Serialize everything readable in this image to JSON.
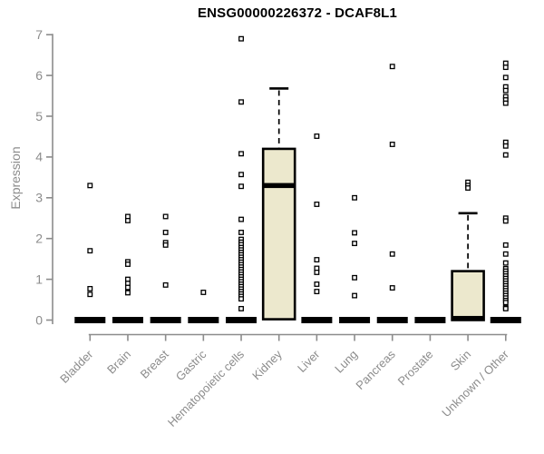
{
  "chart_data": {
    "type": "box",
    "title": "ENSG00000226372 - DCAF8L1",
    "ylabel": "Expression",
    "xlabel": "",
    "ylim": [
      0,
      7
    ],
    "yticks": [
      0,
      1,
      2,
      3,
      4,
      5,
      6,
      7
    ],
    "grid": false,
    "legend": "none",
    "categories": [
      "Bladder",
      "Brain",
      "Breast",
      "Gastric",
      "Hematopoietic cells",
      "Kidney",
      "Liver",
      "Lung",
      "Pancreas",
      "Prostate",
      "Skin",
      "Unknown / Other"
    ],
    "boxes": [
      {
        "category": "Bladder",
        "q1": 0,
        "median": 0,
        "q3": 0,
        "whisker_low": 0,
        "whisker_high": 0,
        "outliers": [
          3.3,
          1.7,
          0.77,
          0.63
        ]
      },
      {
        "category": "Brain",
        "q1": 0,
        "median": 0,
        "q3": 0,
        "whisker_low": 0,
        "whisker_high": 0,
        "outliers": [
          2.54,
          2.44,
          1.43,
          1.37,
          1.0,
          0.9,
          0.8,
          0.67
        ]
      },
      {
        "category": "Breast",
        "q1": 0,
        "median": 0,
        "q3": 0,
        "whisker_low": 0,
        "whisker_high": 0,
        "outliers": [
          2.54,
          2.15,
          1.9,
          1.84,
          0.86
        ]
      },
      {
        "category": "Gastric",
        "q1": 0,
        "median": 0,
        "q3": 0,
        "whisker_low": 0,
        "whisker_high": 0,
        "outliers": [
          0.68
        ]
      },
      {
        "category": "Hematopoietic cells",
        "q1": 0,
        "median": 0,
        "q3": 0,
        "whisker_low": 0,
        "whisker_high": 0,
        "outliers": [
          6.9,
          5.35,
          4.08,
          3.57,
          3.28,
          2.47,
          2.15,
          1.98,
          1.91,
          1.85,
          1.78,
          1.72,
          1.66,
          1.6,
          1.54,
          1.48,
          1.42,
          1.36,
          1.3,
          1.24,
          1.18,
          1.12,
          1.06,
          1.0,
          0.94,
          0.88,
          0.82,
          0.76,
          0.7,
          0.64,
          0.58,
          0.52,
          0.28
        ]
      },
      {
        "category": "Kidney",
        "q1": 0.02,
        "median": 3.3,
        "q3": 4.2,
        "whisker_low": 0,
        "whisker_high": 5.68,
        "outliers": []
      },
      {
        "category": "Liver",
        "q1": 0,
        "median": 0,
        "q3": 0,
        "whisker_low": 0,
        "whisker_high": 0,
        "outliers": [
          4.51,
          2.84,
          1.48,
          1.27,
          1.17,
          0.88,
          0.7
        ]
      },
      {
        "category": "Lung",
        "q1": 0,
        "median": 0,
        "q3": 0,
        "whisker_low": 0,
        "whisker_high": 0,
        "outliers": [
          3.0,
          2.14,
          1.88,
          1.04,
          0.6
        ]
      },
      {
        "category": "Pancreas",
        "q1": 0,
        "median": 0,
        "q3": 0,
        "whisker_low": 0,
        "whisker_high": 0,
        "outliers": [
          6.22,
          4.31,
          1.62,
          0.79
        ]
      },
      {
        "category": "Prostate",
        "q1": 0,
        "median": 0,
        "q3": 0,
        "whisker_low": 0,
        "whisker_high": 0,
        "outliers": []
      },
      {
        "category": "Skin",
        "q1": 0,
        "median": 0.04,
        "q3": 1.2,
        "whisker_low": 0,
        "whisker_high": 2.62,
        "outliers": [
          3.38,
          3.3,
          3.24
        ]
      },
      {
        "category": "Unknown / Other",
        "q1": 0,
        "median": 0,
        "q3": 0,
        "whisker_low": 0,
        "whisker_high": 0,
        "outliers": [
          6.3,
          6.2,
          5.95,
          5.72,
          5.63,
          5.48,
          5.4,
          5.32,
          4.36,
          4.27,
          4.05,
          2.5,
          2.43,
          1.84,
          1.62,
          1.4,
          1.26,
          1.2,
          1.14,
          1.08,
          1.02,
          0.96,
          0.9,
          0.84,
          0.78,
          0.72,
          0.66,
          0.6,
          0.54,
          0.48,
          0.43,
          0.31,
          0.28
        ]
      }
    ],
    "colors": {
      "box_fill": "#ece8cd",
      "box_border": "#000000",
      "median": "#000000",
      "outlier_stroke": "#000000",
      "outlier_fill": "#ffffff",
      "axis": "#8c8c8c",
      "tick_label": "#8c8c8c",
      "title": "#000000"
    }
  }
}
